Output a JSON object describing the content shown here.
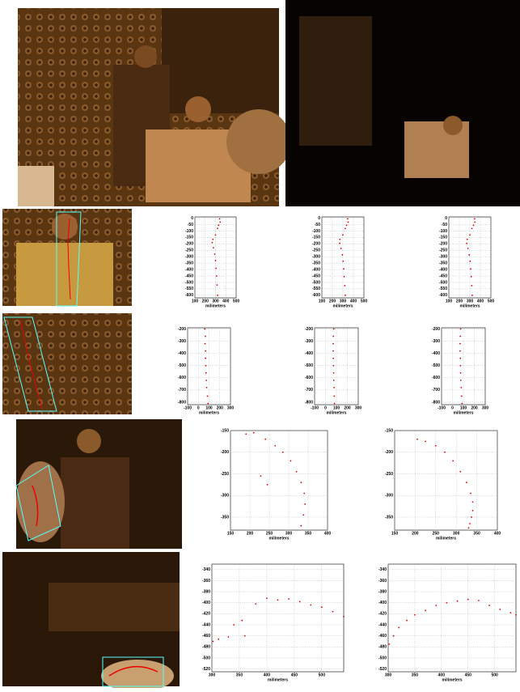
{
  "chart_data": [
    {
      "type": "scatter",
      "xlabel": "milimeters",
      "color": "#e00000",
      "xlim": [
        100,
        500
      ],
      "ylim": [
        -620,
        10
      ],
      "xticks": [
        100,
        200,
        300,
        400,
        500
      ],
      "yticks": [
        0,
        -50,
        -100,
        -150,
        -200,
        -250,
        -300,
        -350,
        -400,
        -450,
        -500,
        -550,
        -600
      ],
      "grid": true,
      "x": [
        340,
        345,
        330,
        320,
        300,
        275,
        268,
        280,
        292,
        300,
        305,
        310,
        315,
        320
      ],
      "values": [
        -5,
        -30,
        -55,
        -80,
        -130,
        -165,
        -190,
        -230,
        -280,
        -330,
        -390,
        -450,
        -520,
        -600
      ]
    },
    {
      "type": "scatter",
      "xlabel": "milimeters",
      "color": "#e00000",
      "xlim": [
        100,
        500
      ],
      "ylim": [
        -620,
        10
      ],
      "xticks": [
        100,
        200,
        300,
        400,
        500
      ],
      "yticks": [
        0,
        -50,
        -100,
        -150,
        -200,
        -250,
        -300,
        -350,
        -400,
        -450,
        -500,
        -550,
        -600
      ],
      "grid": true,
      "x": [
        345,
        350,
        335,
        322,
        300,
        272,
        270,
        282,
        295,
        302,
        308,
        312,
        318,
        322
      ],
      "values": [
        -5,
        -30,
        -55,
        -80,
        -130,
        -165,
        -195,
        -235,
        -285,
        -335,
        -395,
        -455,
        -525,
        -600
      ]
    },
    {
      "type": "scatter",
      "xlabel": "milimeters",
      "color": "#e00000",
      "xlim": [
        100,
        500
      ],
      "ylim": [
        -620,
        10
      ],
      "xticks": [
        100,
        200,
        300,
        400,
        500
      ],
      "yticks": [
        0,
        -50,
        -100,
        -150,
        -200,
        -250,
        -300,
        -350,
        -400,
        -450,
        -500,
        -550,
        -600
      ],
      "grid": true,
      "x": [
        345,
        348,
        335,
        320,
        300,
        275,
        270,
        282,
        294,
        302,
        308,
        313,
        318,
        322
      ],
      "values": [
        -5,
        -30,
        -55,
        -80,
        -130,
        -165,
        -195,
        -235,
        -285,
        -335,
        -395,
        -455,
        -525,
        -600
      ]
    },
    {
      "type": "scatter",
      "xlabel": "milimeters",
      "color": "#e00000",
      "xlim": [
        -100,
        300
      ],
      "ylim": [
        -820,
        -190
      ],
      "xticks": [
        -100,
        0,
        100,
        200,
        300
      ],
      "yticks": [
        -200,
        -300,
        -400,
        -500,
        -600,
        -700,
        -800
      ],
      "grid": true,
      "x": [
        60,
        65,
        62,
        68,
        66,
        70,
        72,
        75,
        78,
        85,
        90
      ],
      "values": [
        -200,
        -260,
        -320,
        -380,
        -440,
        -500,
        -560,
        -620,
        -680,
        -750,
        -810
      ]
    },
    {
      "type": "scatter",
      "xlabel": "milimeters",
      "color": "#e00000",
      "xlim": [
        -100,
        300
      ],
      "ylim": [
        -820,
        -190
      ],
      "xticks": [
        -100,
        0,
        100,
        200,
        300
      ],
      "yticks": [
        -200,
        -300,
        -400,
        -500,
        -600,
        -700,
        -800
      ],
      "grid": true,
      "x": [
        75,
        72,
        70,
        70,
        72,
        73,
        74,
        76,
        78,
        80,
        82
      ],
      "values": [
        -200,
        -260,
        -320,
        -380,
        -440,
        -500,
        -560,
        -620,
        -680,
        -750,
        -810
      ]
    },
    {
      "type": "scatter",
      "xlabel": "milimeters",
      "color": "#e00000",
      "xlim": [
        -100,
        300
      ],
      "ylim": [
        -820,
        -190
      ],
      "xticks": [
        -100,
        0,
        100,
        200,
        300
      ],
      "yticks": [
        -200,
        -300,
        -400,
        -500,
        -600,
        -700,
        -800
      ],
      "grid": true,
      "x": [
        75,
        72,
        70,
        70,
        72,
        73,
        74,
        76,
        80,
        84,
        88
      ],
      "values": [
        -200,
        -260,
        -320,
        -380,
        -440,
        -500,
        -560,
        -620,
        -680,
        -750,
        -810
      ]
    },
    {
      "type": "scatter",
      "xlabel": "milimeters",
      "color": "#e00000",
      "xlim": [
        150,
        400
      ],
      "ylim": [
        -380,
        -150
      ],
      "xticks": [
        150,
        200,
        250,
        300,
        350,
        400
      ],
      "yticks": [
        -150,
        -200,
        -250,
        -300,
        -350
      ],
      "grid": true,
      "x": [
        190,
        210,
        240,
        265,
        285,
        305,
        320,
        332,
        340,
        342,
        338,
        332,
        228,
        245
      ],
      "values": [
        -158,
        -155,
        -170,
        -185,
        -200,
        -220,
        -245,
        -270,
        -295,
        -320,
        -345,
        -370,
        -255,
        -275
      ]
    },
    {
      "type": "scatter",
      "xlabel": "milimeters",
      "color": "#e00000",
      "xlim": [
        150,
        400
      ],
      "ylim": [
        -380,
        -150
      ],
      "xticks": [
        150,
        200,
        250,
        300,
        350,
        400
      ],
      "yticks": [
        -150,
        -200,
        -250,
        -300,
        -350
      ],
      "grid": true,
      "x": [
        205,
        225,
        250,
        272,
        292,
        310,
        325,
        335,
        340,
        340,
        337,
        333,
        330
      ],
      "values": [
        -170,
        -175,
        -185,
        -200,
        -220,
        -245,
        -270,
        -295,
        -315,
        -335,
        -350,
        -365,
        -375
      ]
    },
    {
      "type": "scatter",
      "xlabel": "milimeters",
      "color": "#e00000",
      "xlim": [
        300,
        540
      ],
      "ylim": [
        -525,
        -330
      ],
      "xticks": [
        300,
        350,
        400,
        450,
        500
      ],
      "yticks": [
        -340,
        -360,
        -380,
        -400,
        -420,
        -440,
        -460,
        -480,
        -500,
        -520
      ],
      "grid": true,
      "x": [
        302,
        312,
        340,
        355,
        380,
        400,
        420,
        440,
        460,
        480,
        500,
        520,
        540,
        360,
        330
      ],
      "values": [
        -470,
        -466,
        -440,
        -432,
        -402,
        -392,
        -395,
        -393,
        -398,
        -404,
        -408,
        -416,
        -425,
        -460,
        -462
      ]
    },
    {
      "type": "scatter",
      "xlabel": "milimeters",
      "color": "#e00000",
      "xlim": [
        300,
        540
      ],
      "ylim": [
        -525,
        -330
      ],
      "xticks": [
        300,
        350,
        400,
        450,
        500
      ],
      "yticks": [
        -340,
        -360,
        -380,
        -400,
        -420,
        -440,
        -460,
        -480,
        -500,
        -520
      ],
      "grid": true,
      "x": [
        302,
        310,
        320,
        335,
        350,
        370,
        390,
        410,
        430,
        450,
        470,
        490,
        510,
        530,
        540
      ],
      "values": [
        -475,
        -460,
        -445,
        -432,
        -422,
        -414,
        -405,
        -400,
        -397,
        -394,
        -396,
        -405,
        -412,
        -418,
        -422
      ]
    }
  ]
}
